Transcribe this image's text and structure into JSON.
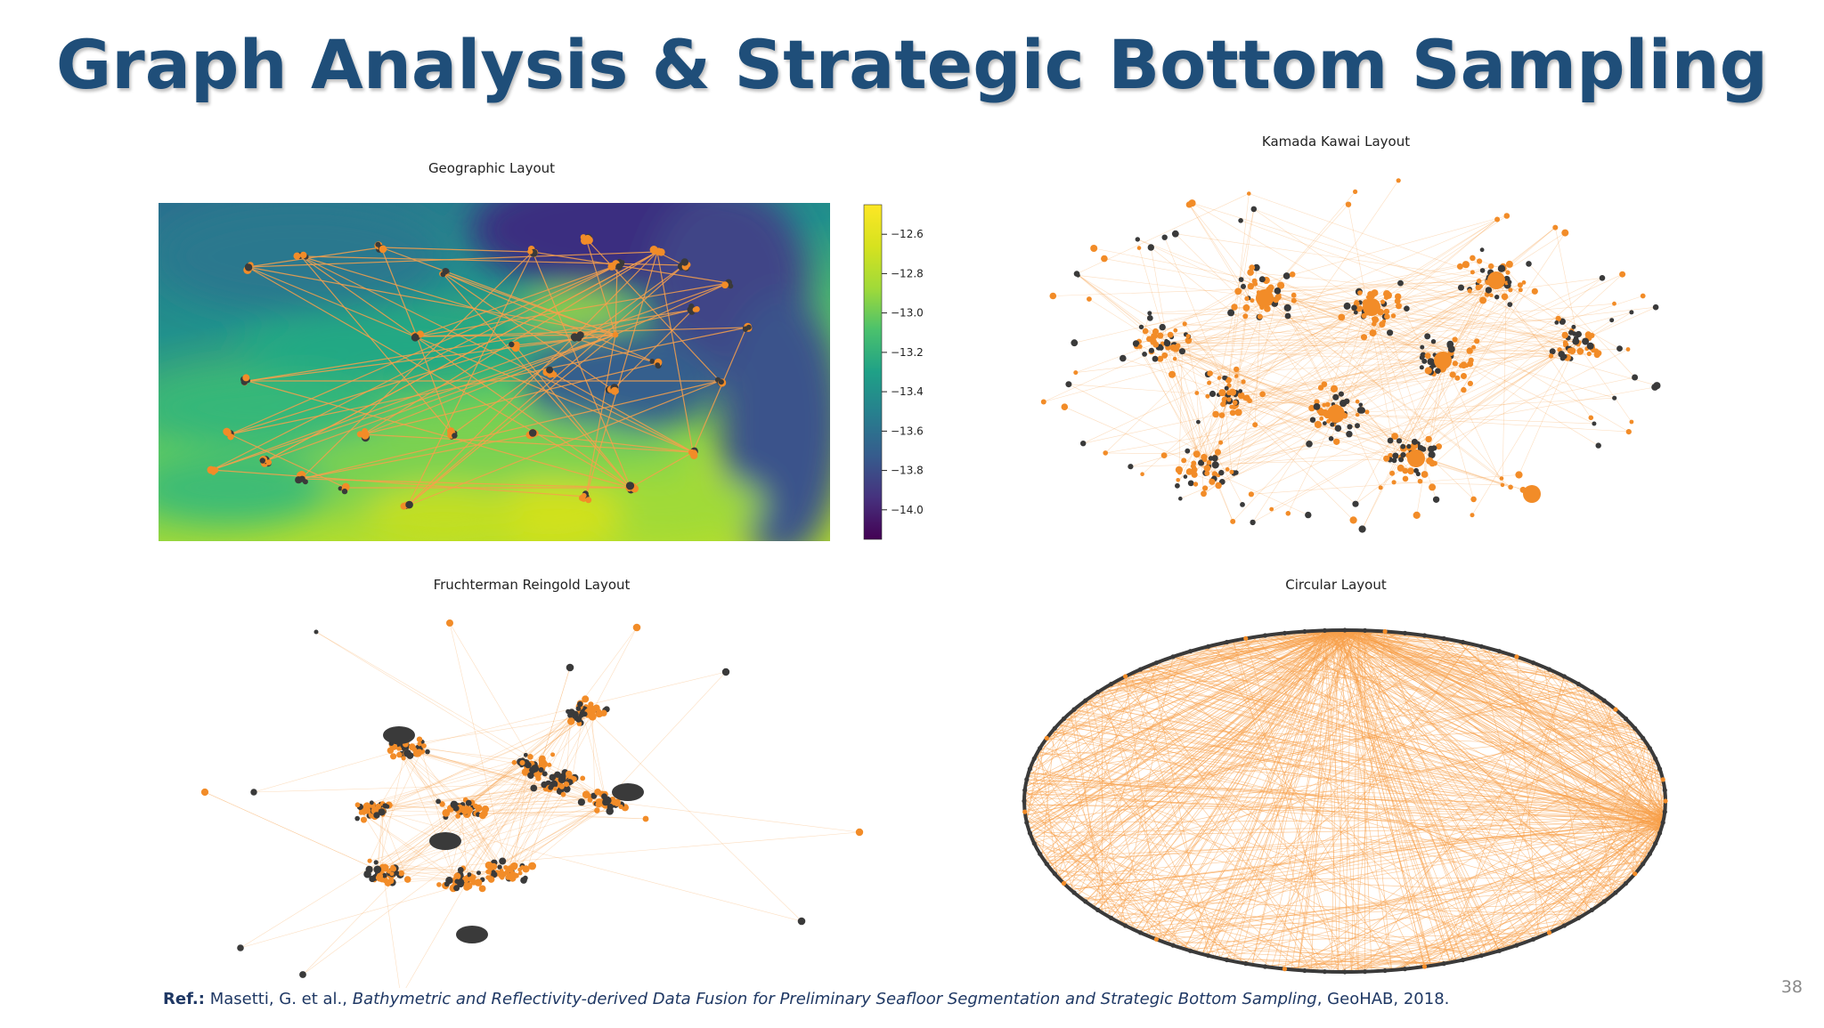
{
  "slide": {
    "title": "Graph Analysis & Strategic Bottom Sampling",
    "page_number": "38"
  },
  "reference": {
    "prefix": "Ref.:",
    "authors": "Masetti, G. et al.,",
    "paper_title": "Bathymetric and Reflectivity-derived Data Fusion for Preliminary Seafloor Segmentation and Strategic Bottom Sampling",
    "venue": ", GeoHAB, 2018."
  },
  "colors": {
    "title": "#1f4e79",
    "node_fill": "#f28c28",
    "node_dark": "#3a3a3a",
    "edge": "#f7a04b",
    "reference_text": "#1f3864"
  },
  "panels": [
    {
      "id": "geographic",
      "title": "Geographic Layout",
      "type": "geo-network-over-bathymetry"
    },
    {
      "id": "kamada-kawai",
      "title": "Kamada Kawai Layout",
      "type": "network"
    },
    {
      "id": "fruchterman-reingold",
      "title": "Fruchterman Reingold Layout",
      "type": "network"
    },
    {
      "id": "circular",
      "title": "Circular Layout",
      "type": "circular-network"
    }
  ],
  "colorbar": {
    "colormap": "viridis",
    "ticks": [
      "-12.6",
      "-12.8",
      "-13.0",
      "-13.2",
      "-13.4",
      "-13.6",
      "-13.8",
      "-14.0"
    ],
    "range": [
      -14.15,
      -12.45
    ]
  }
}
